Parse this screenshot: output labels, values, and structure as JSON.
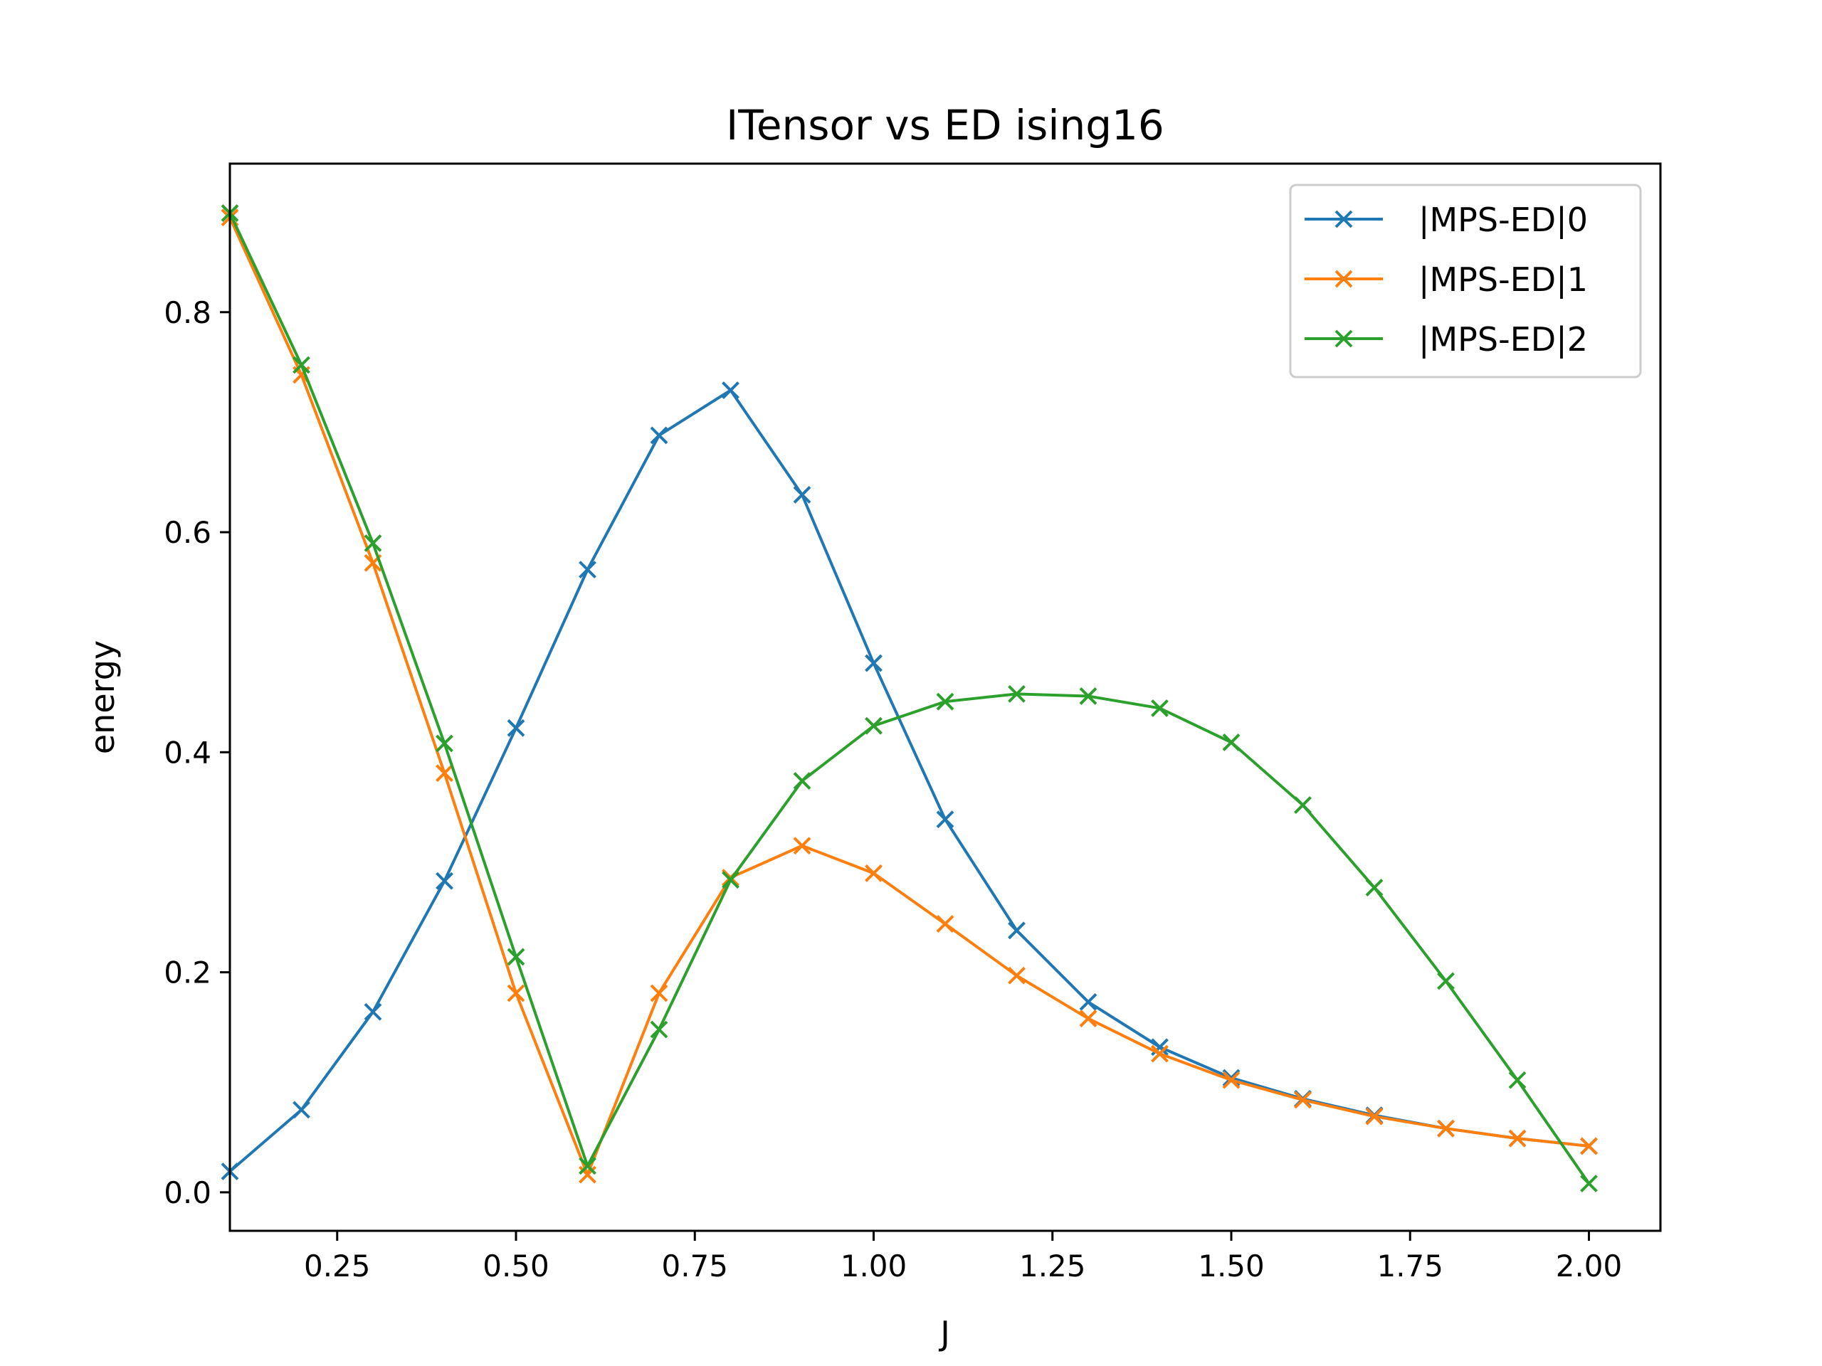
{
  "chart_data": {
    "type": "line",
    "title": "ITensor vs ED ising16",
    "xlabel": "J",
    "ylabel": "energy",
    "xlim": [
      0.1,
      2.1
    ],
    "ylim": [
      -0.035,
      0.935
    ],
    "xticks": [
      0.25,
      0.5,
      0.75,
      1.0,
      1.25,
      1.5,
      1.75,
      2.0
    ],
    "xtick_labels": [
      "0.25",
      "0.50",
      "0.75",
      "1.00",
      "1.25",
      "1.50",
      "1.75",
      "2.00"
    ],
    "yticks": [
      0.0,
      0.2,
      0.4,
      0.6,
      0.8
    ],
    "ytick_labels": [
      "0.0",
      "0.2",
      "0.4",
      "0.6",
      "0.8"
    ],
    "grid": false,
    "legend_position": "top-right",
    "marker": "x",
    "x": [
      0.1,
      0.2,
      0.3,
      0.4,
      0.5,
      0.6,
      0.7,
      0.8,
      0.9,
      1.0,
      1.1,
      1.2,
      1.3,
      1.4,
      1.5,
      1.6,
      1.7,
      1.8,
      1.9,
      2.0
    ],
    "series": [
      {
        "name": "|MPS-ED|0",
        "color": "#1f77b4",
        "x": [
          0.1,
          0.2,
          0.3,
          0.4,
          0.5,
          0.6,
          0.7,
          0.8,
          0.9,
          1.0,
          1.1,
          1.2,
          1.3,
          1.4,
          1.5,
          1.6,
          1.7,
          1.8,
          1.9,
          2.0
        ],
        "values": [
          0.019,
          0.075,
          0.164,
          0.283,
          0.422,
          0.566,
          0.688,
          0.729,
          0.634,
          0.481,
          0.339,
          0.238,
          0.173,
          0.132,
          0.104,
          0.085,
          0.07,
          0.058,
          0.049,
          0.042
        ]
      },
      {
        "name": "|MPS-ED|1",
        "color": "#ff7f0e",
        "x": [
          0.1,
          0.2,
          0.3,
          0.4,
          0.5,
          0.6,
          0.7,
          0.8,
          0.9,
          1.0,
          1.1,
          1.2,
          1.3,
          1.4,
          1.5,
          1.6,
          1.7,
          1.8,
          1.9,
          2.0
        ],
        "values": [
          0.886,
          0.743,
          0.572,
          0.381,
          0.181,
          0.016,
          0.181,
          0.286,
          0.315,
          0.29,
          0.244,
          0.197,
          0.158,
          0.126,
          0.102,
          0.084,
          0.069,
          0.058,
          0.049,
          0.042
        ]
      },
      {
        "name": "|MPS-ED|2",
        "color": "#2ca02c",
        "x": [
          0.1,
          0.2,
          0.3,
          0.4,
          0.5,
          0.6,
          0.7,
          0.8,
          0.9,
          1.0,
          1.1,
          1.2,
          1.3,
          1.4,
          1.5,
          1.6,
          1.7,
          1.8,
          1.9,
          2.0
        ],
        "values": [
          0.89,
          0.752,
          0.59,
          0.408,
          0.214,
          0.024,
          0.148,
          0.284,
          0.374,
          0.424,
          0.446,
          0.453,
          0.451,
          0.44,
          0.409,
          0.352,
          0.277,
          0.192,
          0.102,
          0.008
        ]
      }
    ]
  }
}
